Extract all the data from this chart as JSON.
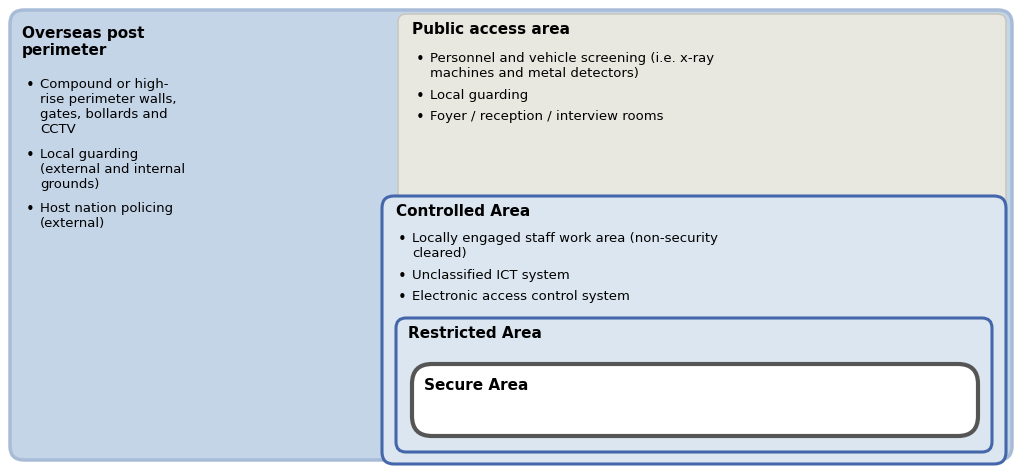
{
  "bg_color": "#ffffff",
  "outer_box_fill": "#c5d5e8",
  "outer_box_edge": "#a8bcd8",
  "public_box_fill": "#e8e8e0",
  "public_box_edge": "#c8c8c0",
  "controlled_box_fill": "#dce6f0",
  "controlled_box_edge": "#4466aa",
  "restricted_box_fill": "#dce6f0",
  "restricted_box_edge": "#4466aa",
  "secure_box_fill": "#ffffff",
  "secure_box_edge": "#555555",
  "title_perimeter": "Overseas post\nperimeter",
  "bullets_perimeter": [
    "Compound or high-\nrise perimeter walls,\ngates, bollards and\nCCTV",
    "Local guarding\n(external and internal\ngrounds)",
    "Host nation policing\n(external)"
  ],
  "title_public": "Public access area",
  "bullets_public": [
    "Personnel and vehicle screening (i.e. x-ray\nmachines and metal detectors)",
    "Local guarding",
    "Foyer / reception / interview rooms"
  ],
  "title_controlled": "Controlled Area",
  "bullets_controlled": [
    "Locally engaged staff work area (non-security\ncleared)",
    "Unclassified ICT system",
    "Electronic access control system"
  ],
  "title_restricted": "Restricted Area",
  "title_secure": "Secure Area",
  "font_size_title": 11,
  "font_size_bullet": 9.5
}
